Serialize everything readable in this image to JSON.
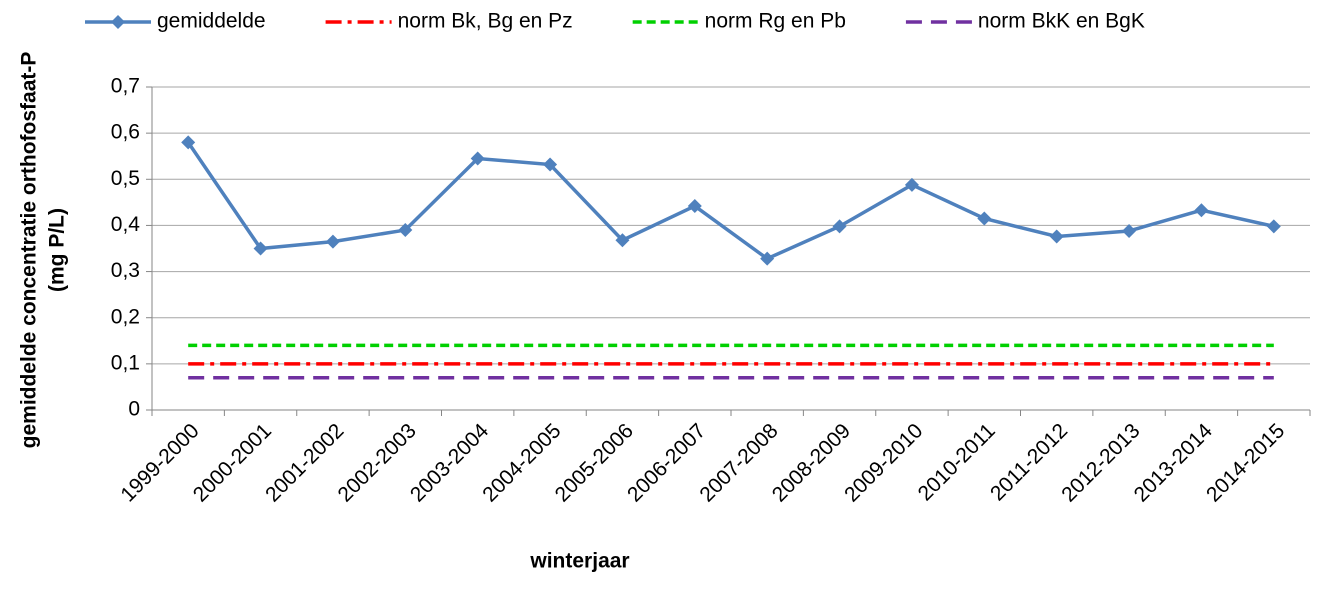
{
  "chart_data": {
    "type": "line",
    "ylabel": [
      "gemiddelde concentratie orthofosfaat-P",
      "(mg P/L)"
    ],
    "xlabel": "winterjaar",
    "categories": [
      "1999-2000",
      "2000-2001",
      "2001-2002",
      "2002-2003",
      "2003-2004",
      "2004-2005",
      "2005-2006",
      "2006-2007",
      "2007-2008",
      "2008-2009",
      "2009-2010",
      "2010-2011",
      "2011-2012",
      "2012-2013",
      "2013-2014",
      "2014-2015"
    ],
    "series": [
      {
        "name": "gemiddelde",
        "color": "#4f81bd",
        "dash": "solid",
        "marker": "diamond",
        "values": [
          0.58,
          0.35,
          0.365,
          0.39,
          0.545,
          0.532,
          0.368,
          0.442,
          0.328,
          0.398,
          0.488,
          0.415,
          0.376,
          0.388,
          0.433,
          0.398
        ]
      },
      {
        "name": "norm Bk, Bg en Pz",
        "color": "#ff0000",
        "dash": "dashdot",
        "values": [
          0.1,
          0.1,
          0.1,
          0.1,
          0.1,
          0.1,
          0.1,
          0.1,
          0.1,
          0.1,
          0.1,
          0.1,
          0.1,
          0.1,
          0.1,
          0.1
        ]
      },
      {
        "name": "norm Rg en Pb",
        "color": "#00d000",
        "dash": "dashed",
        "values": [
          0.14,
          0.14,
          0.14,
          0.14,
          0.14,
          0.14,
          0.14,
          0.14,
          0.14,
          0.14,
          0.14,
          0.14,
          0.14,
          0.14,
          0.14,
          0.14
        ]
      },
      {
        "name": "norm BkK en BgK",
        "color": "#7030a0",
        "dash": "longdash",
        "values": [
          0.07,
          0.07,
          0.07,
          0.07,
          0.07,
          0.07,
          0.07,
          0.07,
          0.07,
          0.07,
          0.07,
          0.07,
          0.07,
          0.07,
          0.07,
          0.07
        ]
      }
    ],
    "ylim": [
      0,
      0.7
    ],
    "yticks": [
      0,
      {
        "value": 0.1,
        "label": "0,1"
      },
      {
        "value": 0.2,
        "label": "0,2"
      },
      {
        "value": 0.3,
        "label": "0,3"
      },
      {
        "value": 0.4,
        "label": "0,4"
      },
      {
        "value": 0.5,
        "label": "0,5"
      },
      {
        "value": 0.6,
        "label": "0,6"
      },
      {
        "value": 0.7,
        "label": "0,7"
      }
    ],
    "grid": true,
    "legend": "top"
  }
}
